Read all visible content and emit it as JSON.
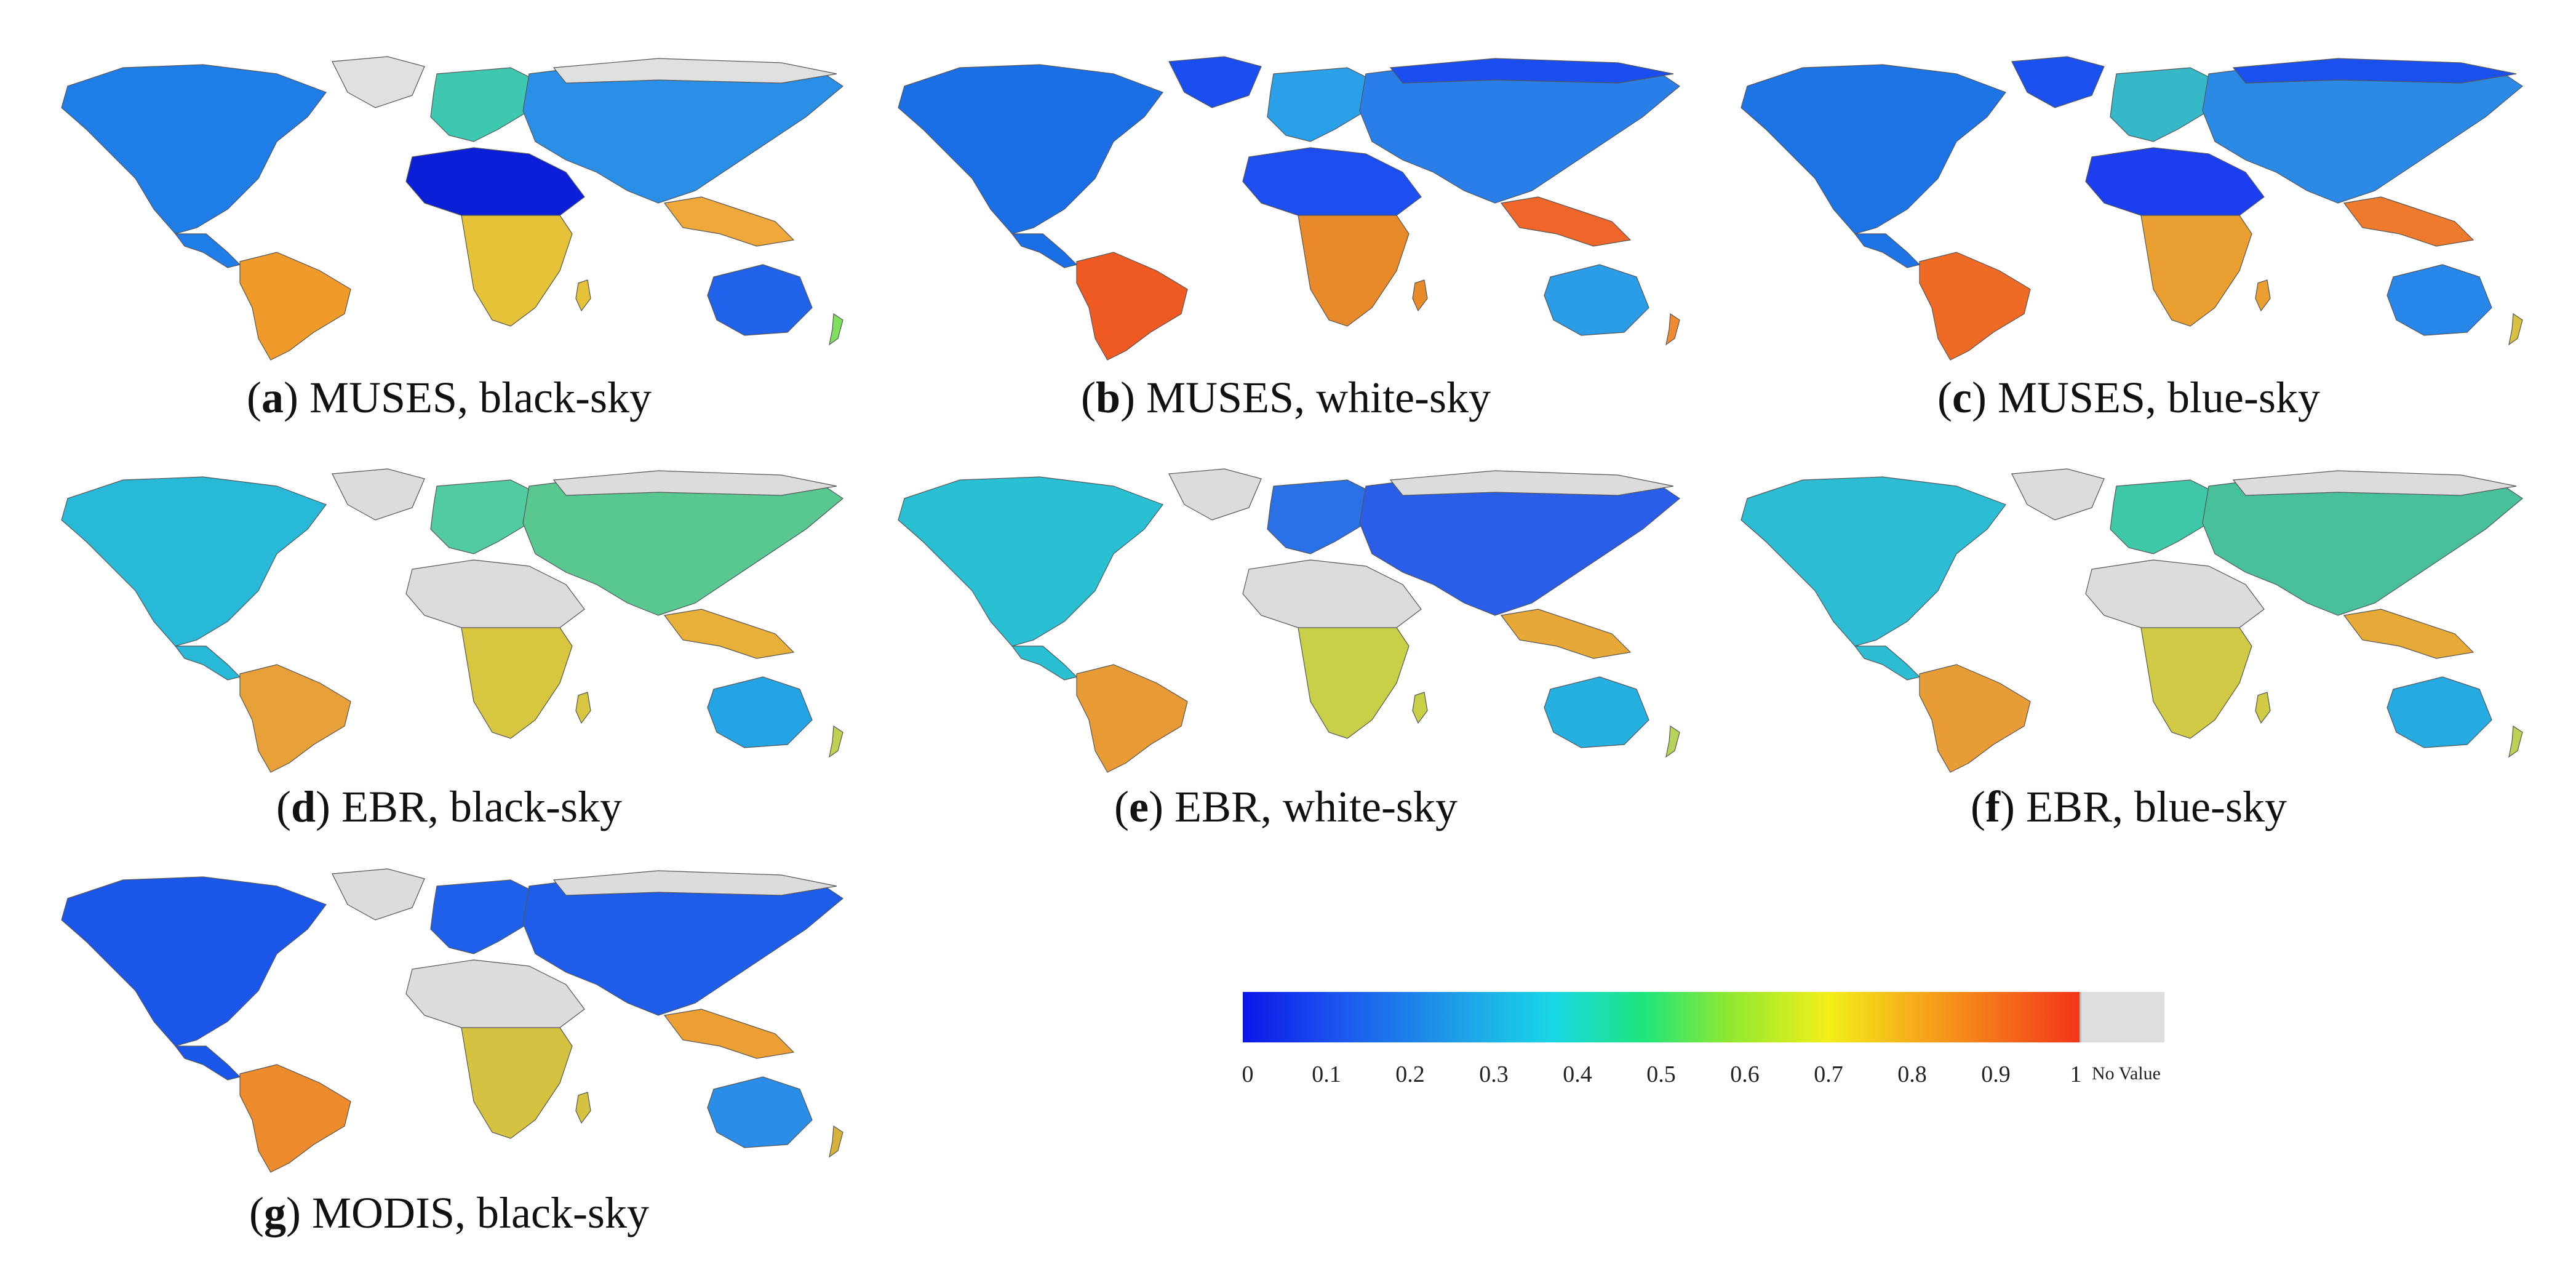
{
  "panels": [
    {
      "letter": "a",
      "caption": "MUSES, black-sky",
      "palette": {
        "na": "#1f7de8",
        "sa": "#f09a2a",
        "eu": "#3fc8b0",
        "af_n": "#0b1fd8",
        "af_s": "#e6c238",
        "asia": "#2a8fe6",
        "se": "#f0a83a",
        "au": "#2062ea",
        "nz": "#7fe060",
        "north": "#e0e0e0"
      }
    },
    {
      "letter": "b",
      "caption": "MUSES, white-sky",
      "palette": {
        "na": "#1a6fe6",
        "sa": "#ee5a22",
        "eu": "#2aa0e8",
        "af_n": "#1c4ef0",
        "af_s": "#e88a2a",
        "asia": "#2a7ee8",
        "se": "#f0652a",
        "au": "#2a9ce8",
        "nz": "#f08a30",
        "north": "#1a4ef0"
      }
    },
    {
      "letter": "c",
      "caption": "MUSES, blue-sky",
      "palette": {
        "na": "#1d74e6",
        "sa": "#ef6a24",
        "eu": "#35b8c8",
        "af_n": "#1a3ef0",
        "af_s": "#eaa030",
        "asia": "#2b8ae6",
        "se": "#f07a2c",
        "au": "#2686ea",
        "nz": "#d8c040",
        "north": "#1a50ee"
      }
    },
    {
      "letter": "d",
      "caption": "EBR, black-sky",
      "palette": {
        "na": "#28b8d8",
        "sa": "#e8a038",
        "eu": "#50cca0",
        "af_n": "#dcdcdc",
        "af_s": "#d8c640",
        "asia": "#58c890",
        "se": "#e8b038",
        "au": "#24a4e4",
        "nz": "#c0d050",
        "north": "#dcdcdc"
      }
    },
    {
      "letter": "e",
      "caption": "EBR, white-sky",
      "palette": {
        "na": "#2ac0d4",
        "sa": "#e89a34",
        "eu": "#2a70e6",
        "af_n": "#dcdcdc",
        "af_s": "#c8d048",
        "asia": "#2a5ee8",
        "se": "#e8a838",
        "au": "#24b0e0",
        "nz": "#b8d458",
        "north": "#dcdcdc"
      }
    },
    {
      "letter": "f",
      "caption": "EBR, blue-sky",
      "palette": {
        "na": "#2cbcd4",
        "sa": "#e89c36",
        "eu": "#3ec8a8",
        "af_n": "#dcdcdc",
        "af_s": "#d0ca44",
        "asia": "#48c09c",
        "se": "#e8aa36",
        "au": "#26aae2",
        "nz": "#bcd254",
        "north": "#dcdcdc"
      }
    },
    {
      "letter": "g",
      "caption": "MODIS, black-sky",
      "palette": {
        "na": "#1a56ea",
        "sa": "#ec8a2c",
        "eu": "#1e60ea",
        "af_n": "#dcdcdc",
        "af_s": "#d4c240",
        "asia": "#1e5cea",
        "se": "#eca034",
        "au": "#2a8ee8",
        "nz": "#d6b23a",
        "north": "#dcdcdc"
      }
    }
  ],
  "legend": {
    "ticks": [
      "0",
      "0.1",
      "0.2",
      "0.3",
      "0.4",
      "0.5",
      "0.6",
      "0.7",
      "0.8",
      "0.9",
      "1"
    ],
    "novalue_label": "No Value",
    "novalue_color": "#dedede",
    "ramp_colors": [
      "#0b16e8",
      "#1c58f0",
      "#1f9be8",
      "#19d6e6",
      "#1ee67c",
      "#8ee832",
      "#f3ef1a",
      "#f6a11a",
      "#f2361a"
    ]
  }
}
